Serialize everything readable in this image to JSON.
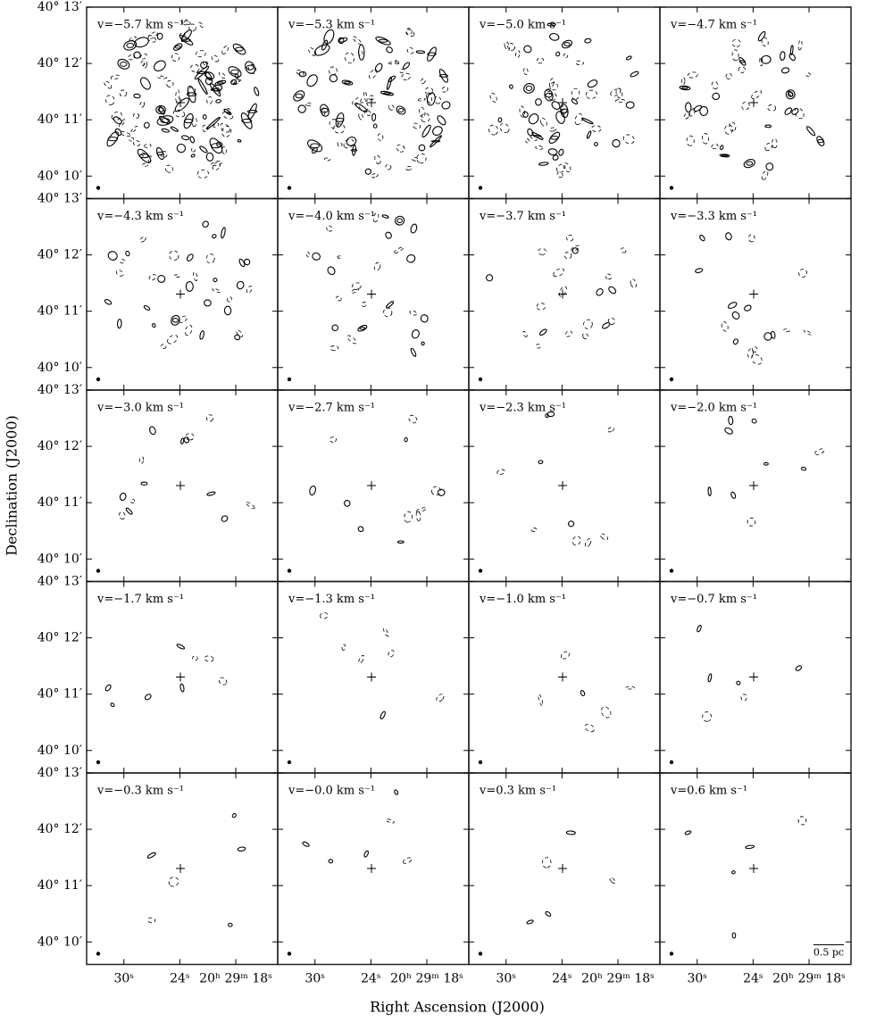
{
  "chart_data": {
    "type": "channel-map",
    "xlabel": "Right Ascension (J2000)",
    "ylabel": "Declination (J2000)",
    "scalebar": "0.5 pc",
    "xlim": [
      34,
      13.5
    ],
    "ylim": [
      9.6,
      13
    ],
    "xticks": [
      {
        "value": 30,
        "label": "30ˢ"
      },
      {
        "value": 24,
        "label": "24ˢ"
      },
      {
        "value": 18,
        "label": "20ʰ 29ᵐ 18ˢ"
      }
    ],
    "yticks": [
      {
        "value": 13,
        "label": "40° 13′"
      },
      {
        "value": 12,
        "label": "40° 12′"
      },
      {
        "value": 11,
        "label": "40° 11′"
      },
      {
        "value": 10,
        "label": "40° 10′"
      }
    ],
    "panels": [
      {
        "label": "v=−5.7 km s⁻¹"
      },
      {
        "label": "v=−5.3 km s⁻¹"
      },
      {
        "label": "v=−5.0 km s⁻¹"
      },
      {
        "label": "v=−4.7 km s⁻¹"
      },
      {
        "label": "v=−4.3 km s⁻¹"
      },
      {
        "label": "v=−4.0 km s⁻¹"
      },
      {
        "label": "v=−3.7 km s⁻¹"
      },
      {
        "label": "v=−3.3 km s⁻¹"
      },
      {
        "label": "v=−3.0 km s⁻¹"
      },
      {
        "label": "v=−2.7 km s⁻¹"
      },
      {
        "label": "v=−2.3 km s⁻¹"
      },
      {
        "label": "v=−2.0 km s⁻¹"
      },
      {
        "label": "v=−1.7 km s⁻¹"
      },
      {
        "label": "v=−1.3 km s⁻¹"
      },
      {
        "label": "v=−1.0 km s⁻¹"
      },
      {
        "label": "v=−0.7 km s⁻¹"
      },
      {
        "label": "v=−0.3 km s⁻¹"
      },
      {
        "label": "v=−0.0 km s⁻¹"
      },
      {
        "label": "v=0.3 km s⁻¹"
      },
      {
        "label": "v=0.6 km s⁻¹"
      }
    ]
  }
}
